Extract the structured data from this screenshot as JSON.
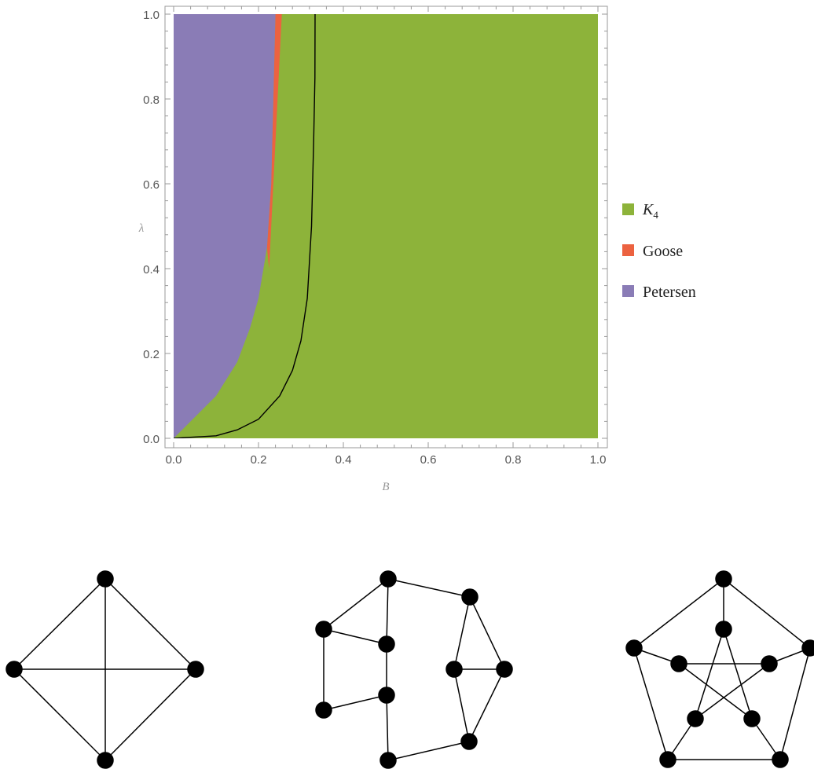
{
  "chart_data": {
    "type": "heatmap",
    "x": [
      0.0,
      0.2,
      0.4,
      0.6,
      0.8,
      1.0
    ],
    "y": [
      0.0,
      0.2,
      0.4,
      0.6,
      0.8,
      1.0
    ],
    "xlabel": "B",
    "ylabel": "λ",
    "xlim": [
      0.0,
      1.0
    ],
    "ylim": [
      0.0,
      1.0
    ],
    "x_tick_labels": [
      "0.0",
      "0.2",
      "0.4",
      "0.6",
      "0.8",
      "1.0"
    ],
    "y_tick_labels": [
      "0.0",
      "0.2",
      "0.4",
      "0.6",
      "0.8",
      "1.0"
    ],
    "grid": false,
    "legend_position": "right",
    "regions": [
      {
        "name": "K4",
        "color": "#8db33a"
      },
      {
        "name": "Goose",
        "color": "#ec6240"
      },
      {
        "name": "Petersen",
        "color": "#8a7cb6"
      }
    ],
    "boundaries": {
      "petersen_upper": [
        [
          0.0,
          0.0
        ],
        [
          0.05,
          0.05
        ],
        [
          0.1,
          0.1
        ],
        [
          0.15,
          0.18
        ],
        [
          0.18,
          0.26
        ],
        [
          0.2,
          0.33
        ],
        [
          0.22,
          0.45
        ],
        [
          0.23,
          0.6
        ],
        [
          0.235,
          0.8
        ],
        [
          0.24,
          1.0
        ]
      ],
      "goose_band_upper": [
        [
          0.225,
          0.4
        ],
        [
          0.235,
          0.6
        ],
        [
          0.245,
          0.8
        ],
        [
          0.255,
          1.0
        ]
      ],
      "curve": [
        [
          0.0,
          0.0
        ],
        [
          0.1,
          0.006
        ],
        [
          0.15,
          0.02
        ],
        [
          0.2,
          0.045
        ],
        [
          0.25,
          0.1
        ],
        [
          0.28,
          0.16
        ],
        [
          0.3,
          0.23
        ],
        [
          0.315,
          0.33
        ],
        [
          0.325,
          0.5
        ],
        [
          0.33,
          0.7
        ],
        [
          0.333,
          0.85
        ],
        [
          0.3333,
          1.0
        ]
      ]
    },
    "legend": [
      {
        "base": "K",
        "sub": "4"
      },
      {
        "base": "Goose",
        "sub": ""
      },
      {
        "base": "Petersen",
        "sub": ""
      }
    ]
  },
  "graphs": [
    {
      "name": "K4"
    },
    {
      "name": "Goose"
    },
    {
      "name": "Petersen"
    }
  ]
}
